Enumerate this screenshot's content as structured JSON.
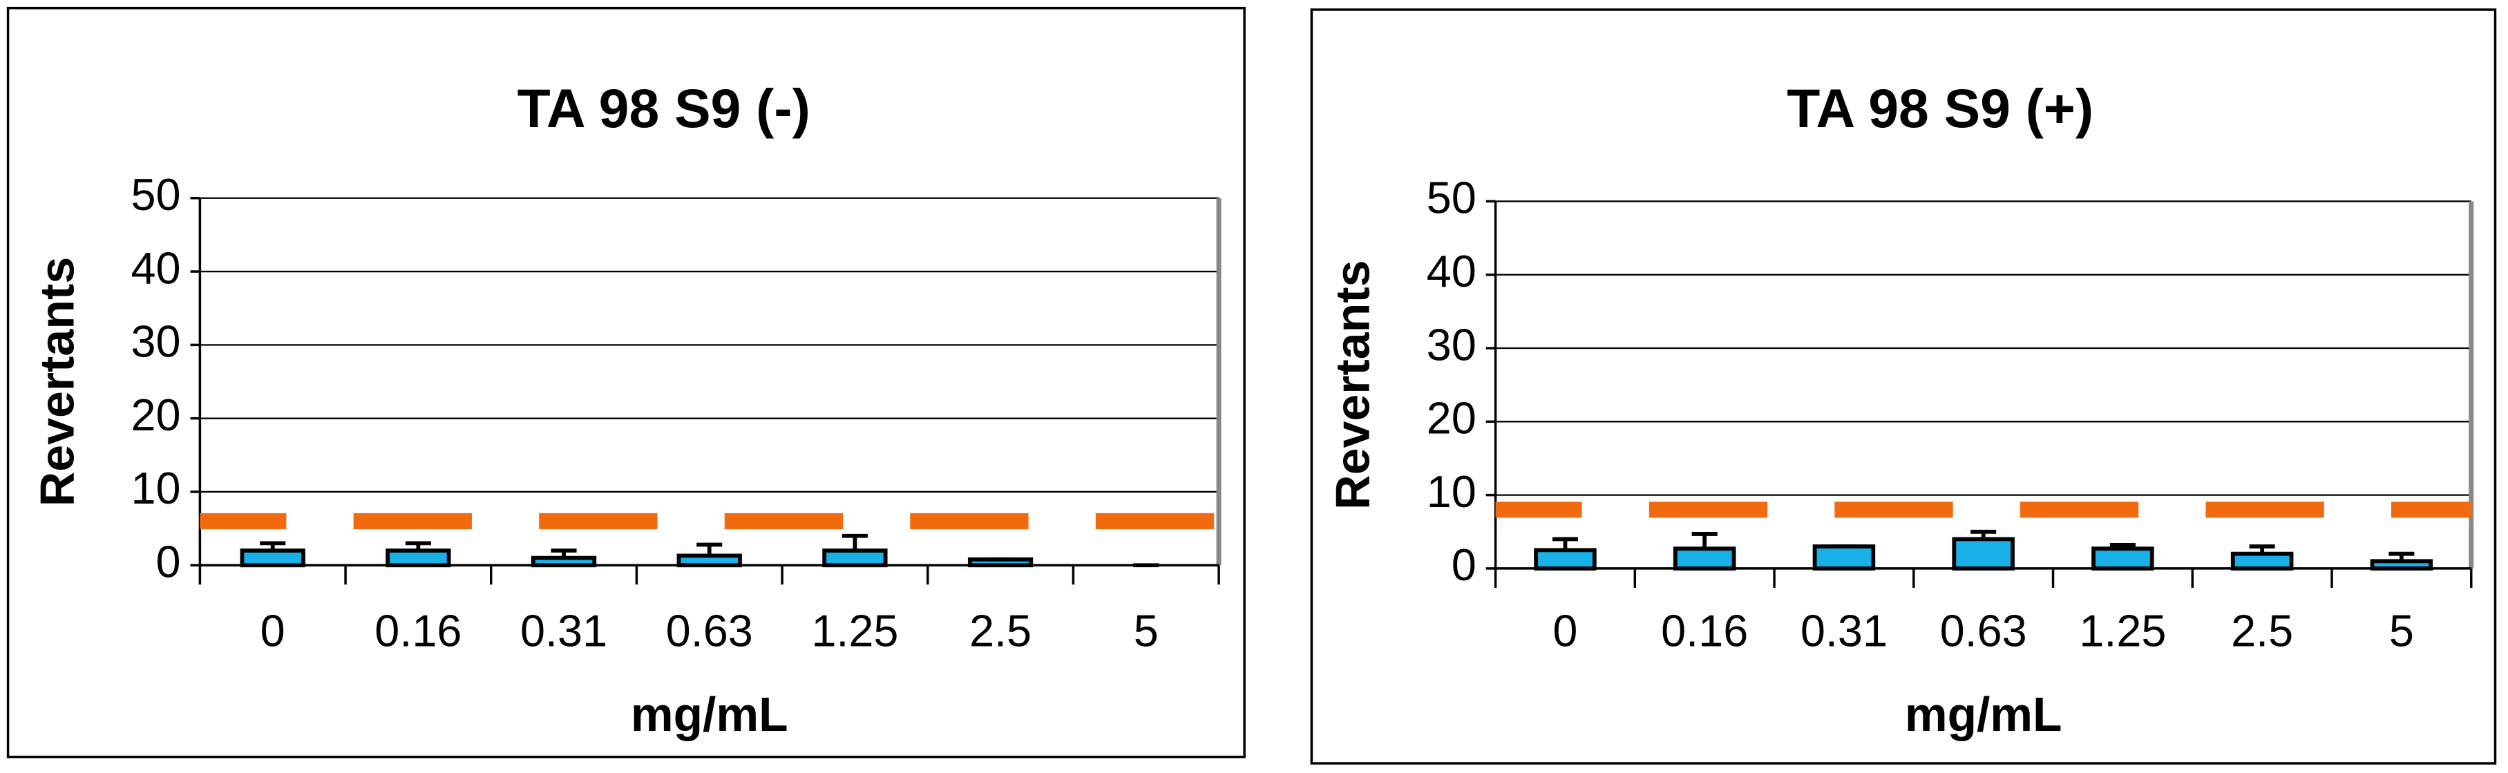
{
  "chart_data": [
    {
      "type": "bar",
      "title": "TA 98 S9 (-)",
      "xlabel": "mg/mL",
      "ylabel": "Revertants",
      "categories": [
        "0",
        "0.16",
        "0.31",
        "0.63",
        "1.25",
        "2.5",
        "5"
      ],
      "series": [
        {
          "color": "#1ab0e8",
          "values": [
            2,
            2,
            1,
            1.3,
            2,
            0.8,
            0
          ],
          "errors": [
            1,
            1,
            1,
            1.5,
            2,
            0,
            0
          ]
        }
      ],
      "threshold": 6,
      "threshold_color": "#f26a10",
      "ylim": [
        0,
        50
      ],
      "yticks": [
        0,
        10,
        20,
        30,
        40,
        50
      ],
      "grid": true
    },
    {
      "type": "bar",
      "title": "TA 98 S9 (+)",
      "xlabel": "mg/mL",
      "ylabel": "Revertants",
      "categories": [
        "0",
        "0.16",
        "0.31",
        "0.63",
        "1.25",
        "2.5",
        "5"
      ],
      "series": [
        {
          "color": "#1ab0e8",
          "values": [
            2.5,
            2.7,
            3,
            4,
            2.7,
            2,
            1
          ],
          "errors": [
            1.5,
            2,
            0,
            1,
            0.5,
            1,
            1
          ]
        }
      ],
      "threshold": 8,
      "threshold_color": "#f26a10",
      "ylim": [
        0,
        50
      ],
      "yticks": [
        0,
        10,
        20,
        30,
        40,
        50
      ],
      "grid": true
    }
  ]
}
